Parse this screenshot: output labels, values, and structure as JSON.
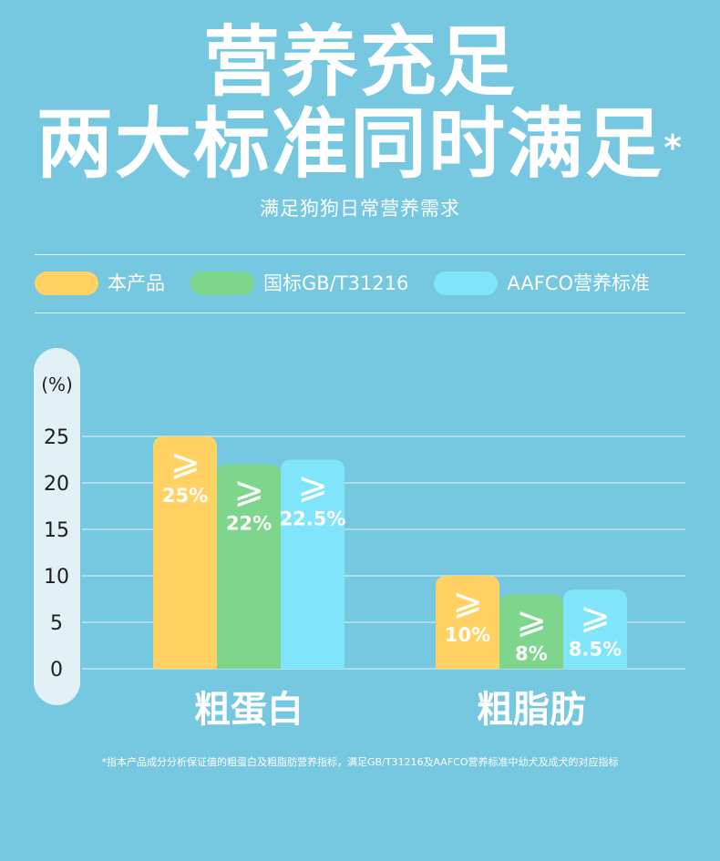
{
  "headline": {
    "line1": "营养充足",
    "line2": "两大标准同时满足",
    "line2_mark": "*",
    "subtitle": "满足狗狗日常营养需求"
  },
  "colors": {
    "background": "#76c7e0",
    "product": "#ffd263",
    "gb": "#7dd68c",
    "aafco": "#80e5fb"
  },
  "footnote": "*指本产品成分分析保证值的粗蛋白及粗脂肪营养指标，满足GB/T31216及AAFCO营养标准中幼犬及成犬的对应指标",
  "chart_data": {
    "type": "bar",
    "unit_label": "(%)",
    "categories": [
      "粗蛋白",
      "粗脂肪"
    ],
    "yticks": [
      0,
      5,
      10,
      15,
      20,
      25
    ],
    "ylim": [
      0,
      25
    ],
    "grid": true,
    "legend_position": "top",
    "series": [
      {
        "name": "本产品",
        "color": "#ffd263",
        "values": [
          25,
          10
        ],
        "labels": [
          "25%",
          "10%"
        ]
      },
      {
        "name": "国标GB/T31216",
        "color": "#7dd68c",
        "values": [
          22,
          8
        ],
        "labels": [
          "22%",
          "8%"
        ]
      },
      {
        "name": "AAFCO营养标准",
        "color": "#80e5fb",
        "values": [
          22.5,
          8.5
        ],
        "labels": [
          "22.5%",
          "8.5%"
        ]
      }
    ],
    "comparator": "⩾"
  }
}
